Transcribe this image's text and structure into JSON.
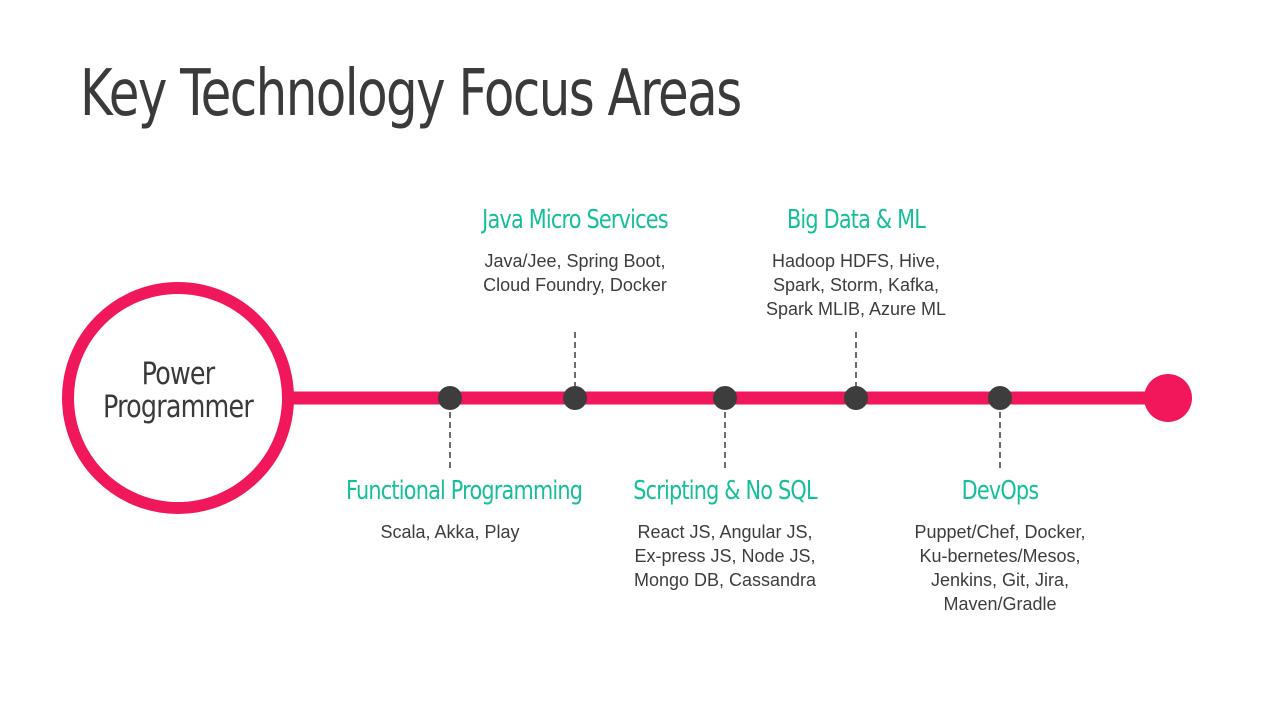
{
  "slide": {
    "title": "Key Technology Focus Areas"
  },
  "colors": {
    "accent_line": "#f0175a",
    "node": "#3d3d3d",
    "topic_title": "#16bf9a",
    "text": "#3d3d3d"
  },
  "timeline": {
    "start_label_line1": "Power",
    "start_label_line2": "Programmer"
  },
  "topics": [
    {
      "title": "Functional Programming",
      "description": "Scala, Akka, Play",
      "position": "below"
    },
    {
      "title": "Java Micro Services",
      "description": "Java/Jee, Spring Boot, Cloud Foundry, Docker",
      "position": "above"
    },
    {
      "title": "Scripting & No SQL",
      "description": "React JS, Angular JS, Ex-press JS, Node JS, Mongo DB, Cassandra",
      "position": "below"
    },
    {
      "title": "Big Data & ML",
      "description": "Hadoop HDFS, Hive, Spark, Storm, Kafka, Spark MLIB, Azure ML",
      "position": "above"
    },
    {
      "title": "DevOps",
      "description": "Puppet/Chef, Docker, Ku-bernetes/Mesos, Jenkins, Git, Jira, Maven/Gradle",
      "position": "below"
    }
  ]
}
